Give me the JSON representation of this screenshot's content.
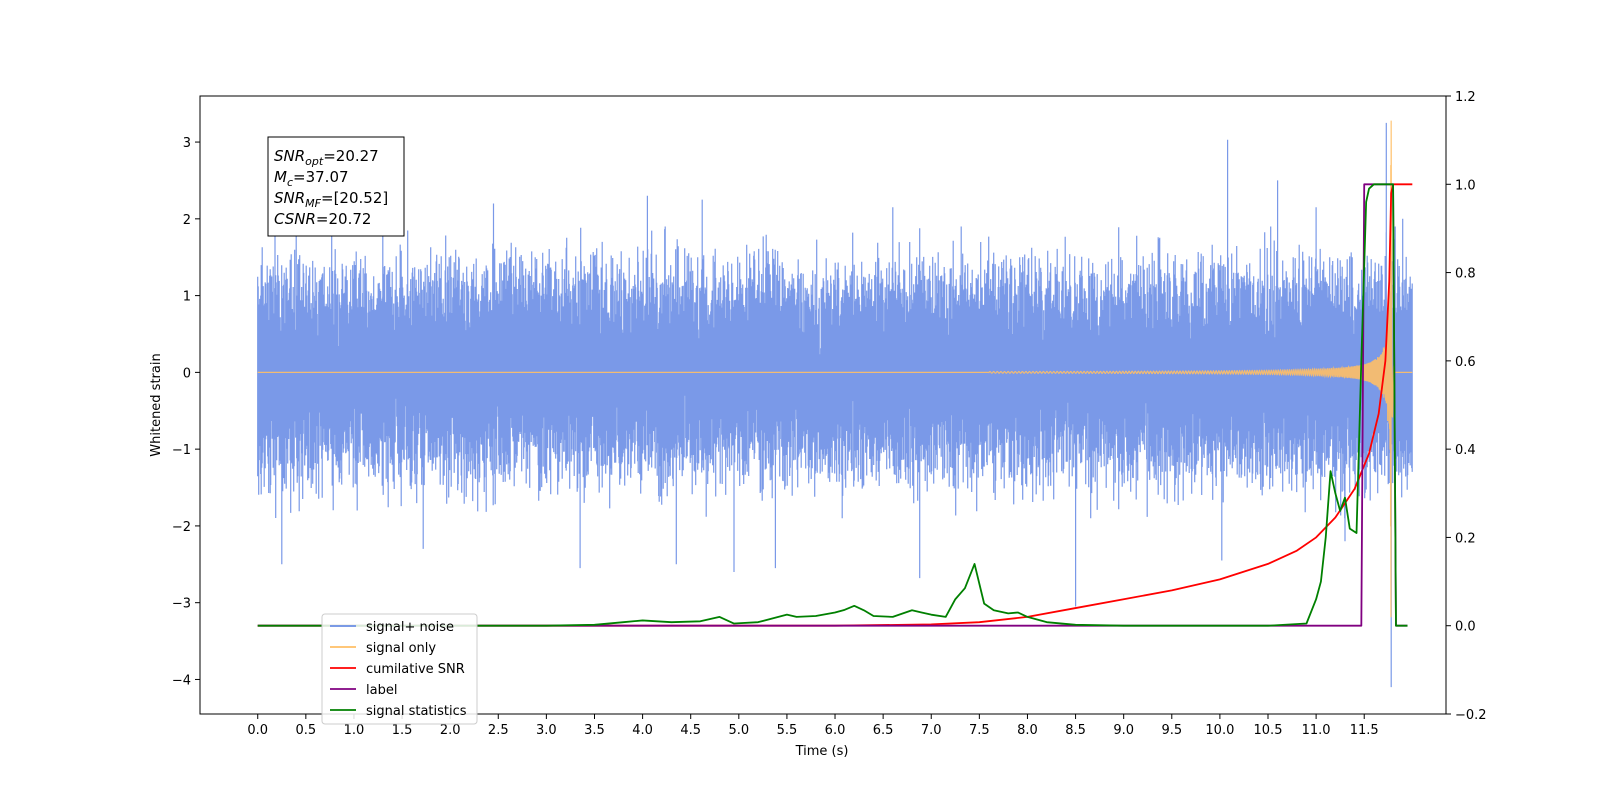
{
  "chart_data": {
    "type": "line",
    "title": "",
    "xlabel": "Time (s)",
    "ylabel": "Whitened strain",
    "y2label": "",
    "xlim": [
      -0.6,
      12.35
    ],
    "ylim": [
      -4.45,
      3.6
    ],
    "y2lim": [
      -0.2,
      1.2
    ],
    "x_ticks": [
      "0.0",
      "0.5",
      "1.0",
      "1.5",
      "2.0",
      "2.5",
      "3.0",
      "3.5",
      "4.0",
      "4.5",
      "5.0",
      "5.5",
      "6.0",
      "6.5",
      "7.0",
      "7.5",
      "8.0",
      "8.5",
      "9.0",
      "9.5",
      "10.0",
      "10.5",
      "11.0",
      "11.5"
    ],
    "y_ticks": [
      "−4",
      "−3",
      "−2",
      "−1",
      "0",
      "1",
      "2",
      "3"
    ],
    "y2_ticks": [
      "−0.2",
      "0.0",
      "0.2",
      "0.4",
      "0.6",
      "0.8",
      "1.0",
      "1.2"
    ],
    "grid": false,
    "legend_position": "bottom-left",
    "legend": [
      {
        "label": "signal+ noise",
        "color": "#6b8ee6"
      },
      {
        "label": "signal only",
        "color": "#ffbf66"
      },
      {
        "label": "cumilative SNR",
        "color": "#ff0000"
      },
      {
        "label": "label",
        "color": "#800080"
      },
      {
        "label": "signal statistics",
        "color": "#008000"
      }
    ],
    "annotation": {
      "lines": [
        {
          "var": "SNR",
          "sub": "opt",
          "value": "=20.27"
        },
        {
          "var": "M",
          "sub": "c",
          "value": "=37.07"
        },
        {
          "var": "SNR",
          "sub": "MF",
          "value": "=[20.52]"
        },
        {
          "var": "CSNR",
          "sub": "",
          "value": "=20.72"
        }
      ]
    },
    "series": [
      {
        "name": "signal+ noise",
        "axis": "left",
        "color": "#6b8ee6",
        "t_start": 0.0,
        "t_end": 12.0,
        "envelope": {
          "typical_max": 1.35,
          "typical_min": -1.45
        },
        "spikes": [
          [
            0.18,
            1.9
          ],
          [
            0.25,
            -2.5
          ],
          [
            0.4,
            2.1
          ],
          [
            1.3,
            2.25
          ],
          [
            1.72,
            -2.3
          ],
          [
            2.45,
            2.2
          ],
          [
            3.35,
            -2.55
          ],
          [
            4.05,
            2.3
          ],
          [
            4.35,
            -2.5
          ],
          [
            4.62,
            2.25
          ],
          [
            4.95,
            -2.6
          ],
          [
            5.38,
            -2.55
          ],
          [
            6.6,
            2.15
          ],
          [
            6.88,
            -2.68
          ],
          [
            8.5,
            -3.05
          ],
          [
            10.08,
            3.03
          ],
          [
            10.6,
            2.5
          ],
          [
            10.02,
            -2.45
          ],
          [
            11.0,
            2.15
          ],
          [
            11.3,
            -2.2
          ],
          [
            11.73,
            3.25
          ],
          [
            11.78,
            -4.1
          ],
          [
            11.9,
            2.0
          ]
        ]
      },
      {
        "name": "signal only",
        "axis": "left",
        "color": "#ffbf66",
        "chirp_start": 7.6,
        "merger_time": 11.78,
        "peak_amplitude": 3.28,
        "end_time": 12.0
      },
      {
        "name": "cumilative SNR",
        "axis": "right",
        "color": "#ff0000",
        "x": [
          0.0,
          6.0,
          7.0,
          7.5,
          8.0,
          8.5,
          9.0,
          9.5,
          10.0,
          10.5,
          10.8,
          11.0,
          11.2,
          11.4,
          11.55,
          11.65,
          11.72,
          11.76,
          11.78,
          11.8,
          11.85,
          12.0
        ],
        "y": [
          0.0,
          0.0,
          0.003,
          0.008,
          0.02,
          0.04,
          0.06,
          0.08,
          0.105,
          0.14,
          0.17,
          0.2,
          0.245,
          0.31,
          0.39,
          0.48,
          0.6,
          0.78,
          0.98,
          1.0,
          1.0,
          1.0
        ]
      },
      {
        "name": "label",
        "axis": "right",
        "color": "#800080",
        "x": [
          0.0,
          11.47,
          11.5,
          11.8,
          11.83,
          11.95
        ],
        "y": [
          0.0,
          0.0,
          1.0,
          1.0,
          0.0,
          0.0
        ]
      },
      {
        "name": "signal statistics",
        "axis": "right",
        "color": "#008000",
        "x": [
          0.0,
          3.0,
          3.5,
          3.8,
          4.0,
          4.3,
          4.6,
          4.8,
          4.95,
          5.2,
          5.5,
          5.6,
          5.8,
          6.0,
          6.1,
          6.2,
          6.3,
          6.4,
          6.6,
          6.8,
          6.9,
          7.0,
          7.15,
          7.25,
          7.35,
          7.45,
          7.55,
          7.65,
          7.8,
          7.9,
          8.0,
          8.2,
          8.5,
          9.0,
          10.0,
          10.5,
          10.9,
          11.0,
          11.05,
          11.1,
          11.12,
          11.15,
          11.2,
          11.25,
          11.3,
          11.35,
          11.42,
          11.47,
          11.52,
          11.55,
          11.6,
          11.68,
          11.76,
          11.8,
          11.83,
          11.9,
          11.95
        ],
        "y": [
          0.0,
          0.0,
          0.002,
          0.008,
          0.012,
          0.008,
          0.01,
          0.02,
          0.005,
          0.008,
          0.025,
          0.02,
          0.022,
          0.03,
          0.036,
          0.045,
          0.035,
          0.022,
          0.02,
          0.035,
          0.03,
          0.025,
          0.02,
          0.06,
          0.085,
          0.14,
          0.05,
          0.035,
          0.028,
          0.03,
          0.02,
          0.008,
          0.002,
          0.0,
          0.0,
          0.0,
          0.005,
          0.06,
          0.1,
          0.2,
          0.26,
          0.35,
          0.3,
          0.26,
          0.29,
          0.22,
          0.21,
          0.6,
          0.96,
          0.99,
          1.0,
          1.0,
          1.0,
          1.0,
          0.0,
          0.0,
          0.0
        ]
      }
    ]
  }
}
